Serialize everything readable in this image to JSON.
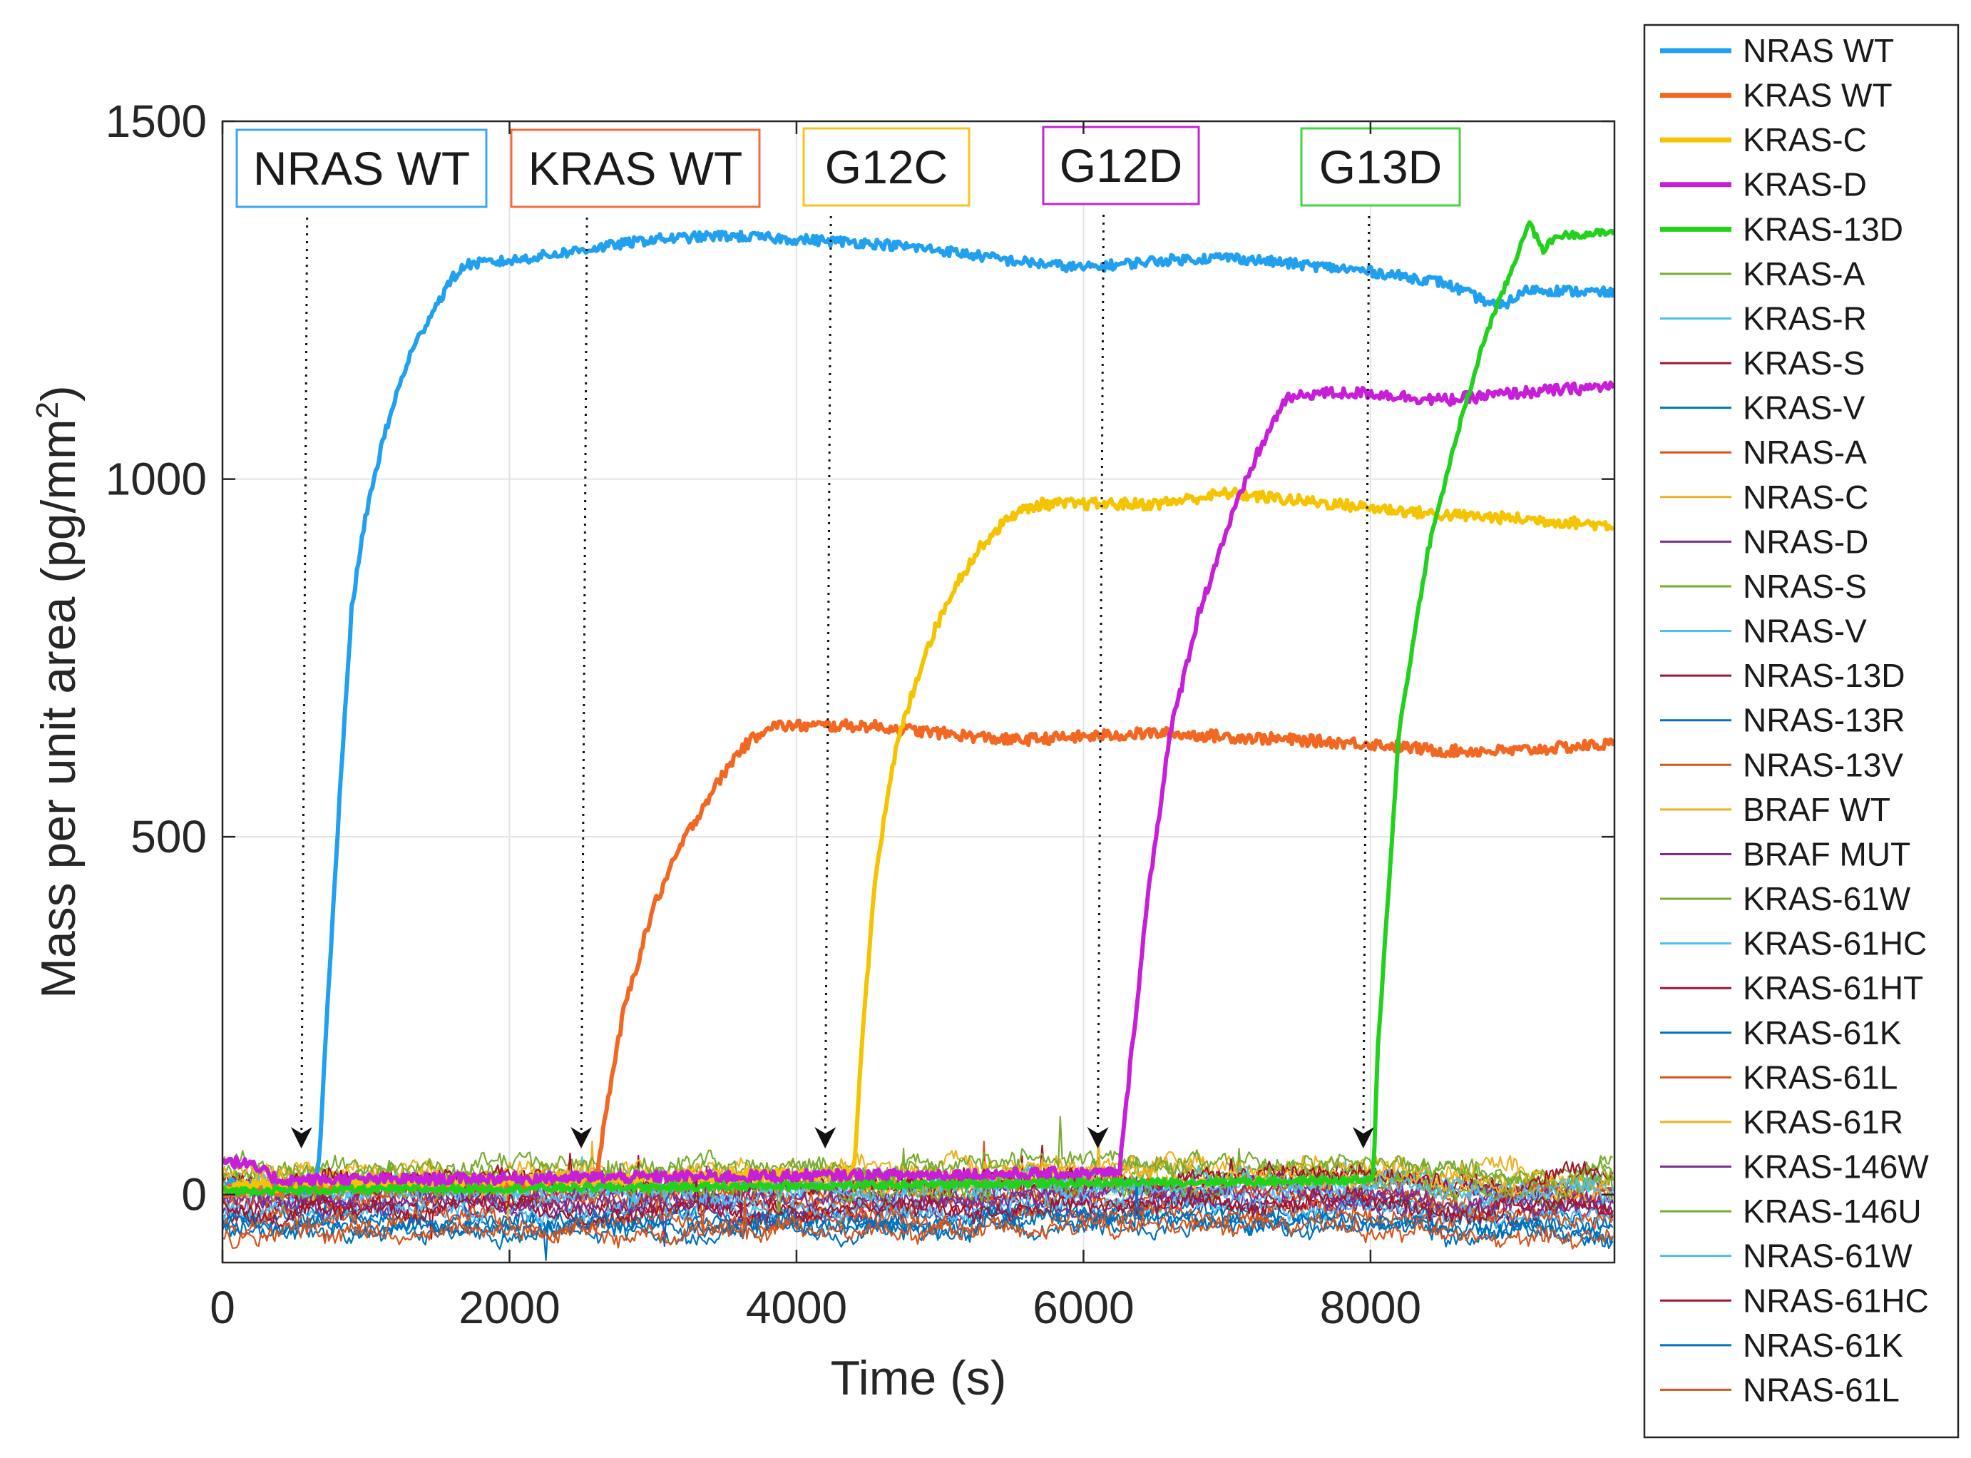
{
  "chart_data": {
    "type": "line",
    "title": "",
    "xlabel": "Time (s)",
    "ylabel": "Mass per unit area (pg/mm",
    "ylabel_sup": "2",
    "ylabel_suffix": ")",
    "xlim": [
      0,
      9700
    ],
    "ylim": [
      -95,
      1500
    ],
    "xticks": [
      0,
      2000,
      4000,
      6000,
      8000
    ],
    "xtick_labels": [
      "0",
      "2000",
      "4000",
      "6000",
      "8000"
    ],
    "yticks": [
      0,
      500,
      1000,
      1500
    ],
    "ytick_labels": [
      "0",
      "500",
      "1000",
      "1500"
    ],
    "grid": true,
    "legend_position": "outside-right",
    "annotations": [
      {
        "text": "NRAS WT",
        "arrow_x": 550,
        "color": "#3ba7ef"
      },
      {
        "text": "KRAS WT",
        "arrow_x": 2500,
        "color": "#f26f3d"
      },
      {
        "text": "G12C",
        "arrow_x": 4200,
        "color": "#f5c518"
      },
      {
        "text": "G12D",
        "arrow_x": 6100,
        "color": "#c624d6"
      },
      {
        "text": "G13D",
        "arrow_x": 7950,
        "color": "#43d43f"
      }
    ],
    "series": [
      {
        "name": "NRAS WT",
        "color": "#22a0f0",
        "bold": true,
        "baseline": 0,
        "noise": 7,
        "points": [
          [
            0,
            15
          ],
          [
            650,
            8
          ],
          [
            680,
            60
          ],
          [
            700,
            150
          ],
          [
            800,
            500
          ],
          [
            900,
            820
          ],
          [
            1000,
            950
          ],
          [
            1100,
            1040
          ],
          [
            1200,
            1110
          ],
          [
            1300,
            1170
          ],
          [
            1450,
            1230
          ],
          [
            1600,
            1280
          ],
          [
            1700,
            1300
          ],
          [
            2000,
            1305
          ],
          [
            2500,
            1320
          ],
          [
            3000,
            1335
          ],
          [
            3500,
            1340
          ],
          [
            4000,
            1335
          ],
          [
            4500,
            1330
          ],
          [
            5000,
            1320
          ],
          [
            5500,
            1305
          ],
          [
            6000,
            1295
          ],
          [
            6500,
            1305
          ],
          [
            7000,
            1310
          ],
          [
            7500,
            1300
          ],
          [
            8000,
            1290
          ],
          [
            8500,
            1275
          ],
          [
            8900,
            1240
          ],
          [
            9100,
            1265
          ],
          [
            9700,
            1260
          ]
        ]
      },
      {
        "name": "KRAS WT",
        "color": "#f26722",
        "bold": true,
        "baseline": 8,
        "noise": 8,
        "points": [
          [
            0,
            5
          ],
          [
            2600,
            20
          ],
          [
            2700,
            150
          ],
          [
            2800,
            260
          ],
          [
            3000,
            400
          ],
          [
            3200,
            490
          ],
          [
            3400,
            560
          ],
          [
            3600,
            620
          ],
          [
            3800,
            655
          ],
          [
            4500,
            655
          ],
          [
            5000,
            645
          ],
          [
            5500,
            635
          ],
          [
            6000,
            640
          ],
          [
            6500,
            645
          ],
          [
            7000,
            640
          ],
          [
            7500,
            635
          ],
          [
            8000,
            630
          ],
          [
            8500,
            620
          ],
          [
            9000,
            620
          ],
          [
            9700,
            630
          ]
        ]
      },
      {
        "name": "KRAS-C",
        "color": "#f5c400",
        "bold": true,
        "baseline": 12,
        "noise": 8,
        "points": [
          [
            0,
            10
          ],
          [
            4400,
            30
          ],
          [
            4450,
            200
          ],
          [
            4550,
            450
          ],
          [
            4700,
            630
          ],
          [
            4900,
            760
          ],
          [
            5100,
            850
          ],
          [
            5300,
            910
          ],
          [
            5500,
            950
          ],
          [
            5700,
            965
          ],
          [
            6500,
            965
          ],
          [
            7000,
            980
          ],
          [
            7500,
            970
          ],
          [
            8000,
            960
          ],
          [
            8500,
            950
          ],
          [
            9000,
            945
          ],
          [
            9700,
            935
          ]
        ]
      },
      {
        "name": "KRAS-D",
        "color": "#c71fd8",
        "bold": true,
        "baseline": -5,
        "noise": 8,
        "points": [
          [
            0,
            50
          ],
          [
            200,
            40
          ],
          [
            400,
            20
          ],
          [
            6250,
            30
          ],
          [
            6300,
            130
          ],
          [
            6450,
            420
          ],
          [
            6600,
            640
          ],
          [
            6800,
            810
          ],
          [
            7000,
            930
          ],
          [
            7200,
            1030
          ],
          [
            7400,
            1110
          ],
          [
            7600,
            1120
          ],
          [
            8000,
            1120
          ],
          [
            8500,
            1110
          ],
          [
            9000,
            1120
          ],
          [
            9700,
            1130
          ]
        ]
      },
      {
        "name": "KRAS-13D",
        "color": "#22d11c",
        "bold": true,
        "baseline": 0,
        "noise": 5,
        "points": [
          [
            0,
            5
          ],
          [
            8020,
            20
          ],
          [
            8050,
            200
          ],
          [
            8200,
            650
          ],
          [
            8400,
            900
          ],
          [
            8600,
            1060
          ],
          [
            8800,
            1200
          ],
          [
            9000,
            1300
          ],
          [
            9100,
            1360
          ],
          [
            9200,
            1320
          ],
          [
            9300,
            1340
          ],
          [
            9700,
            1345
          ]
        ]
      },
      {
        "name": "KRAS-A",
        "color": "#77ac30",
        "bold": false,
        "baseline": 20,
        "noise": 9
      },
      {
        "name": "KRAS-R",
        "color": "#4dbeee",
        "bold": false,
        "baseline": -10,
        "noise": 9
      },
      {
        "name": "KRAS-S",
        "color": "#a2142f",
        "bold": false,
        "baseline": 15,
        "noise": 9
      },
      {
        "name": "KRAS-V",
        "color": "#0072bd",
        "bold": false,
        "baseline": -30,
        "noise": 9
      },
      {
        "name": "NRAS-A",
        "color": "#d95319",
        "bold": false,
        "baseline": 5,
        "noise": 9
      },
      {
        "name": "NRAS-C",
        "color": "#edb120",
        "bold": false,
        "baseline": 25,
        "noise": 9
      },
      {
        "name": "NRAS-D",
        "color": "#7e2f8e",
        "bold": false,
        "baseline": -20,
        "noise": 9
      },
      {
        "name": "NRAS-S",
        "color": "#77ac30",
        "bold": false,
        "baseline": 30,
        "noise": 9
      },
      {
        "name": "NRAS-V",
        "color": "#4dbeee",
        "bold": false,
        "baseline": 10,
        "noise": 9
      },
      {
        "name": "NRAS-13D",
        "color": "#a2142f",
        "bold": false,
        "baseline": -15,
        "noise": 9
      },
      {
        "name": "NRAS-13R",
        "color": "#0072bd",
        "bold": false,
        "baseline": -40,
        "noise": 9
      },
      {
        "name": "NRAS-13V",
        "color": "#d95319",
        "bold": false,
        "baseline": -5,
        "noise": 9
      },
      {
        "name": "BRAF WT",
        "color": "#edb120",
        "bold": false,
        "baseline": 35,
        "noise": 9
      },
      {
        "name": "BRAF MUT",
        "color": "#7e2f8e",
        "bold": false,
        "baseline": 0,
        "noise": 9
      },
      {
        "name": "KRAS-61W",
        "color": "#77ac30",
        "bold": false,
        "baseline": 40,
        "noise": 9
      },
      {
        "name": "KRAS-61HC",
        "color": "#4dbeee",
        "bold": false,
        "baseline": -25,
        "noise": 9
      },
      {
        "name": "KRAS-61HT",
        "color": "#a2142f",
        "bold": false,
        "baseline": 20,
        "noise": 9
      },
      {
        "name": "KRAS-61K",
        "color": "#0072bd",
        "bold": false,
        "baseline": -50,
        "noise": 9
      },
      {
        "name": "KRAS-61L",
        "color": "#d95319",
        "bold": false,
        "baseline": -35,
        "noise": 9
      },
      {
        "name": "KRAS-61R",
        "color": "#edb120",
        "bold": false,
        "baseline": 15,
        "noise": 9
      },
      {
        "name": "KRAS-146W",
        "color": "#7e2f8e",
        "bold": false,
        "baseline": -10,
        "noise": 9
      },
      {
        "name": "KRAS-146U",
        "color": "#77ac30",
        "bold": false,
        "baseline": 10,
        "noise": 9
      },
      {
        "name": "NRAS-61W",
        "color": "#4dbeee",
        "bold": false,
        "baseline": 5,
        "noise": 9
      },
      {
        "name": "NRAS-61HC",
        "color": "#a2142f",
        "bold": false,
        "baseline": -20,
        "noise": 9
      },
      {
        "name": "NRAS-61K",
        "color": "#0072bd",
        "bold": false,
        "baseline": -45,
        "noise": 9
      },
      {
        "name": "NRAS-61L",
        "color": "#d95319",
        "bold": false,
        "baseline": -55,
        "noise": 9
      }
    ]
  }
}
